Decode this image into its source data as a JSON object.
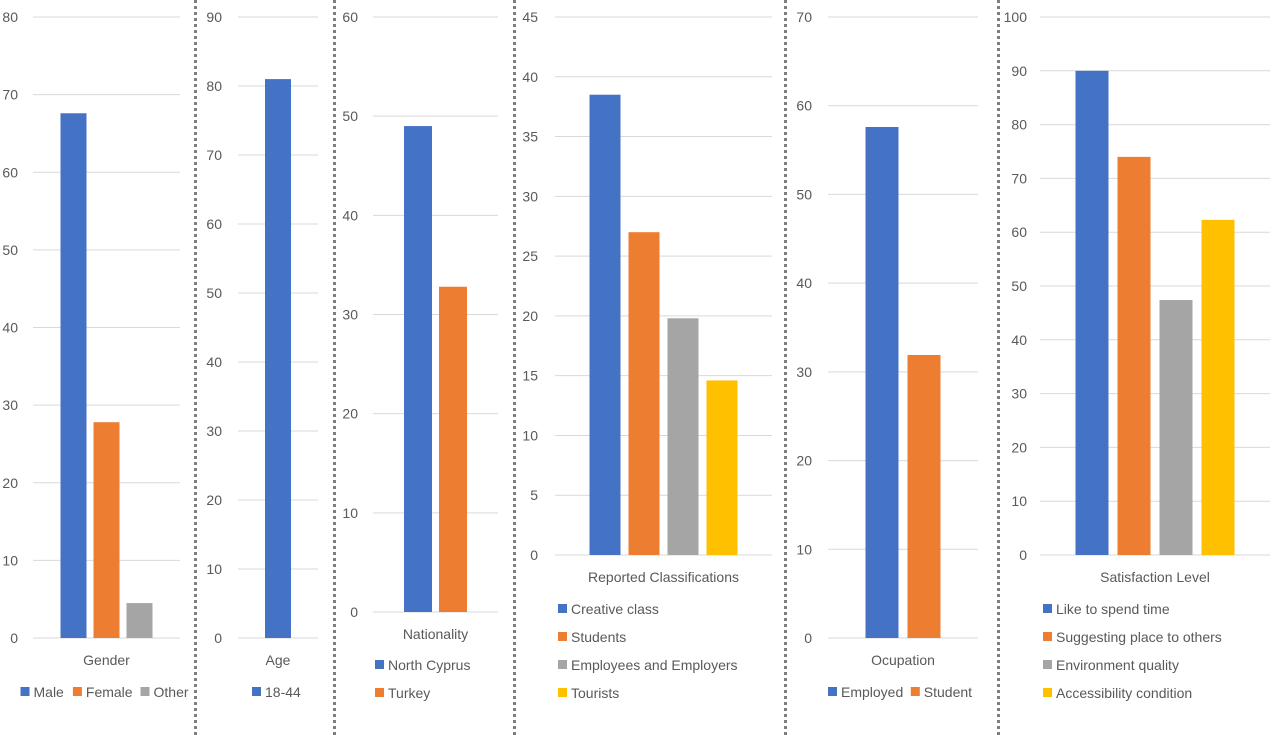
{
  "colors": {
    "blue": "#4472c4",
    "orange": "#ed7d31",
    "gray": "#a5a5a5",
    "yellow": "#ffc000",
    "grid": "#d9d9d9",
    "text": "#595959",
    "divider": "#7f7f7f"
  },
  "chart_data": [
    {
      "id": "gender",
      "type": "bar",
      "title": "",
      "xlabel": "Gender",
      "ylabel": "",
      "ylim": [
        0,
        80
      ],
      "ytick_step": 10,
      "yticks": [
        "0",
        "10",
        "20",
        "30",
        "40",
        "50",
        "60",
        "70",
        "80"
      ],
      "grid": true,
      "legend_position": "bottom",
      "legend_layout": "row",
      "categories": [
        "Gender"
      ],
      "series": [
        {
          "name": "Male",
          "color": "#4472c4",
          "values": [
            67.6
          ]
        },
        {
          "name": "Female",
          "color": "#ed7d31",
          "values": [
            27.8
          ]
        },
        {
          "name": "Other",
          "color": "#a5a5a5",
          "values": [
            4.5
          ]
        }
      ]
    },
    {
      "id": "age",
      "type": "bar",
      "title": "",
      "xlabel": "Age",
      "ylabel": "",
      "ylim": [
        0,
        90
      ],
      "ytick_step": 10,
      "yticks": [
        "0",
        "10",
        "20",
        "30",
        "40",
        "50",
        "60",
        "70",
        "80",
        "90"
      ],
      "grid": true,
      "legend_position": "bottom",
      "legend_layout": "row",
      "categories": [
        "Age"
      ],
      "series": [
        {
          "name": "18-44",
          "color": "#4472c4",
          "values": [
            81
          ]
        }
      ]
    },
    {
      "id": "nationality",
      "type": "bar",
      "title": "",
      "xlabel": "Nationality",
      "ylabel": "",
      "ylim": [
        0,
        60
      ],
      "ytick_step": 10,
      "yticks": [
        "0",
        "10",
        "20",
        "30",
        "40",
        "50",
        "60"
      ],
      "grid": true,
      "legend_position": "bottom",
      "legend_layout": "column",
      "categories": [
        "Nationality"
      ],
      "series": [
        {
          "name": "North Cyprus",
          "color": "#4472c4",
          "values": [
            49
          ]
        },
        {
          "name": "Turkey",
          "color": "#ed7d31",
          "values": [
            32.8
          ]
        }
      ]
    },
    {
      "id": "classifications",
      "type": "bar",
      "title": "",
      "xlabel": "Reported Classifications",
      "ylabel": "",
      "ylim": [
        0,
        45
      ],
      "ytick_step": 5,
      "yticks": [
        "0",
        "5",
        "10",
        "15",
        "20",
        "25",
        "30",
        "35",
        "40",
        "45"
      ],
      "grid": true,
      "legend_position": "bottom",
      "legend_layout": "column",
      "categories": [
        "Reported Classifications"
      ],
      "series": [
        {
          "name": "Creative class",
          "color": "#4472c4",
          "values": [
            38.5
          ]
        },
        {
          "name": "Students",
          "color": "#ed7d31",
          "values": [
            27
          ]
        },
        {
          "name": "Employees and Employers",
          "color": "#a5a5a5",
          "values": [
            19.8
          ]
        },
        {
          "name": "Tourists",
          "color": "#ffc000",
          "values": [
            14.6
          ]
        }
      ]
    },
    {
      "id": "occupation",
      "type": "bar",
      "title": "",
      "xlabel": "Ocupation",
      "ylabel": "",
      "ylim": [
        0,
        70
      ],
      "ytick_step": 10,
      "yticks": [
        "0",
        "10",
        "20",
        "30",
        "40",
        "50",
        "60",
        "70"
      ],
      "grid": true,
      "legend_position": "bottom",
      "legend_layout": "row",
      "categories": [
        "Ocupation"
      ],
      "series": [
        {
          "name": "Employed",
          "color": "#4472c4",
          "values": [
            57.6
          ]
        },
        {
          "name": "Student",
          "color": "#ed7d31",
          "values": [
            31.9
          ]
        }
      ]
    },
    {
      "id": "satisfaction",
      "type": "bar",
      "title": "",
      "xlabel": "Satisfaction Level",
      "ylabel": "",
      "ylim": [
        0,
        100
      ],
      "ytick_step": 10,
      "yticks": [
        "0",
        "10",
        "20",
        "30",
        "40",
        "50",
        "60",
        "70",
        "80",
        "90",
        "100"
      ],
      "grid": true,
      "legend_position": "bottom",
      "legend_layout": "column",
      "categories": [
        "Satisfaction Level"
      ],
      "series": [
        {
          "name": "Like to spend time",
          "color": "#4472c4",
          "values": [
            90
          ]
        },
        {
          "name": "Suggesting place to others",
          "color": "#ed7d31",
          "values": [
            74
          ]
        },
        {
          "name": "Environment quality",
          "color": "#a5a5a5",
          "values": [
            47.4
          ]
        },
        {
          "name": "Accessibility condition",
          "color": "#ffc000",
          "values": [
            62.3
          ]
        }
      ]
    }
  ]
}
